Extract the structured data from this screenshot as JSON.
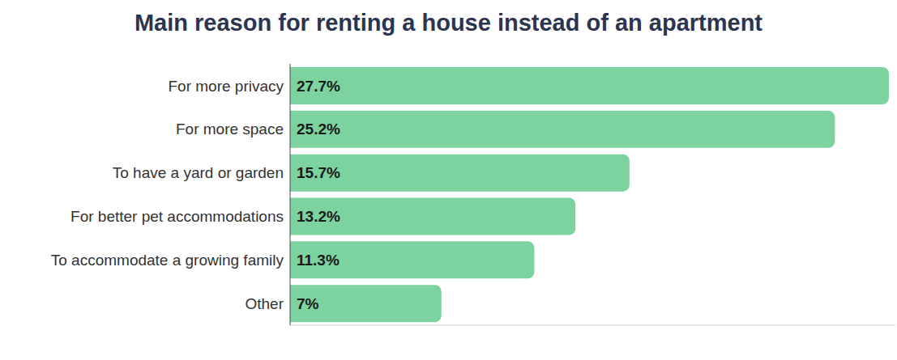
{
  "chart_data": {
    "type": "bar",
    "title": "Main reason for renting a house instead of an apartment",
    "orientation": "horizontal",
    "categories": [
      "For more privacy",
      "For more space",
      "To have a yard or garden",
      "For better pet accommodations",
      "To accommodate a growing family",
      "Other"
    ],
    "values": [
      27.7,
      25.2,
      15.7,
      13.2,
      11.3,
      7
    ],
    "value_labels": [
      "27.7%",
      "25.2%",
      "15.7%",
      "13.2%",
      "11.3%",
      "7%"
    ],
    "data_labels": true,
    "tick_labels": "y",
    "color": "#7dd3a0",
    "xlim": [
      0,
      28
    ],
    "grid": false
  }
}
